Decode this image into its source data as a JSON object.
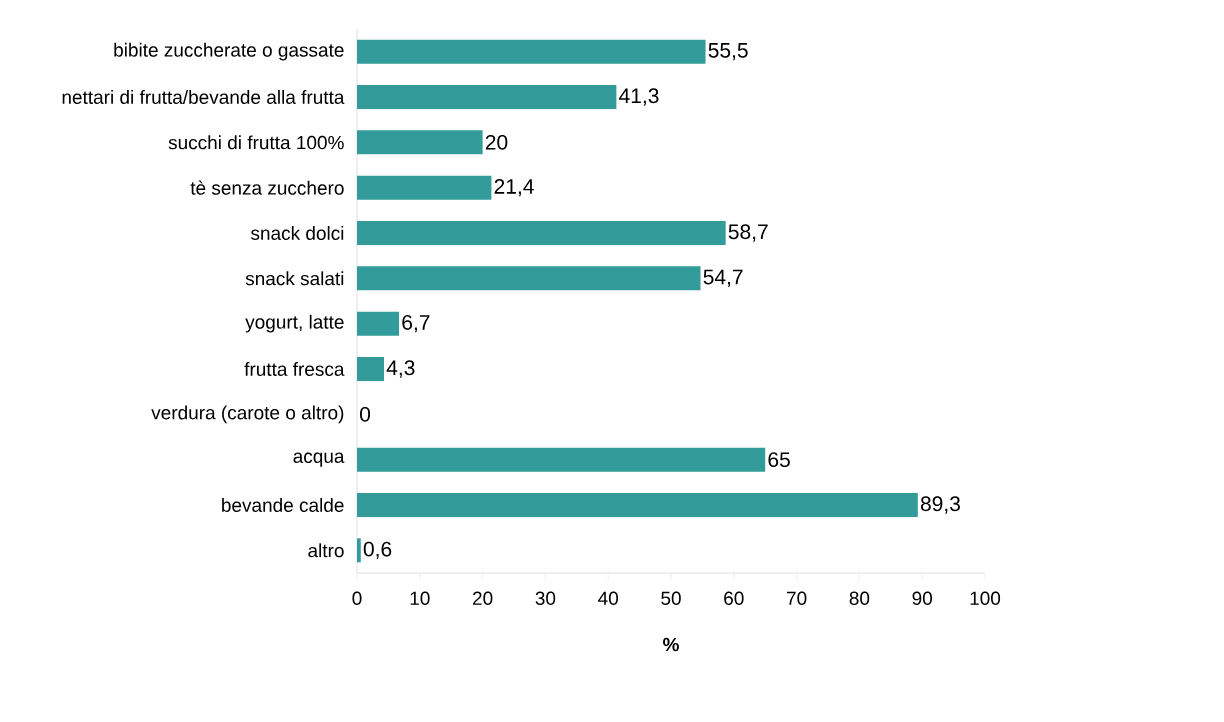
{
  "chart_data": {
    "type": "bar",
    "orientation": "horizontal",
    "xlabel": "%",
    "categories": [
      "bibite zuccherate o gassate",
      "nettari di frutta/bevande alla frutta",
      "succhi di frutta 100%",
      "tè senza zucchero",
      "snack dolci",
      "snack salati",
      "yogurt, latte",
      "frutta fresca",
      "verdura (carote o altro)",
      "acqua",
      "bevande calde",
      "altro"
    ],
    "values": [
      55.5,
      41.3,
      20,
      21.4,
      58.7,
      54.7,
      6.7,
      4.3,
      0,
      65,
      89.3,
      0.6
    ],
    "value_labels": [
      "55,5",
      "41,3",
      "20",
      "21,4",
      "58,7",
      "54,7",
      "6,7",
      "4,3",
      "0",
      "65",
      "89,3",
      "0,6"
    ],
    "color": "#339b99",
    "xlim": [
      0,
      100
    ],
    "xticks": [
      0,
      10,
      20,
      30,
      40,
      50,
      60,
      70,
      80,
      90,
      100
    ],
    "grid": false
  }
}
